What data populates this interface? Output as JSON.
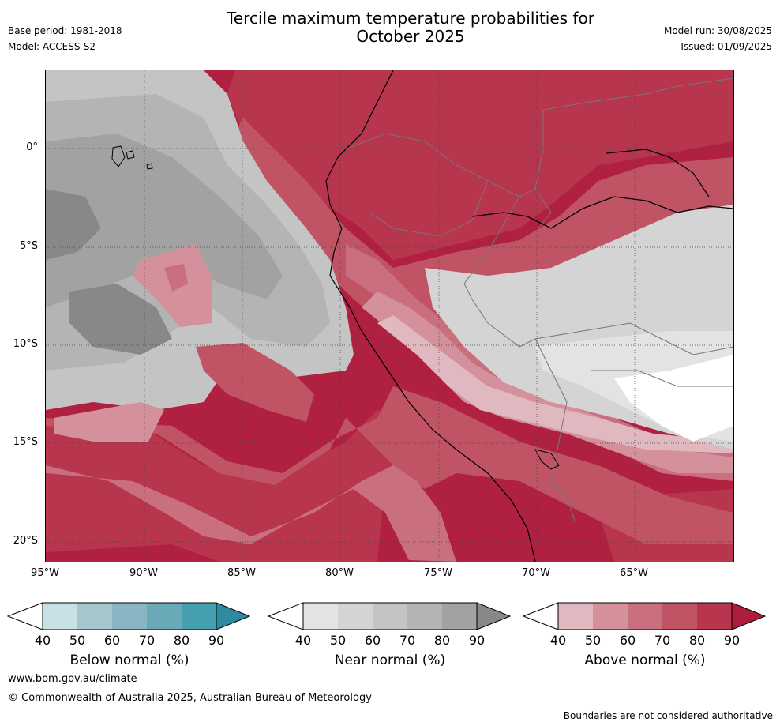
{
  "header": {
    "title_line1": "Tercile maximum temperature probabilities for",
    "title_line2": "October 2025",
    "base_period": "Base period: 1981-2018",
    "model": "Model: ACCESS-S2",
    "model_run": "Model run: 30/08/2025",
    "issued": "Issued: 01/09/2025"
  },
  "map": {
    "y_labels": [
      "0°",
      "5°S",
      "10°S",
      "15°S",
      "20°S"
    ],
    "x_labels": [
      "95°W",
      "90°W",
      "85°W",
      "80°W",
      "75°W",
      "70°W",
      "65°W"
    ],
    "lon_range": [
      -95,
      -60
    ],
    "lat_range": [
      -21,
      4
    ],
    "categories": {
      "below_normal": [
        "#c7e1e7",
        "#a5c8cf",
        "#88b6c2",
        "#6aa9b7",
        "#469fb1",
        "#2d8aa0"
      ],
      "near_normal": [
        "#e3e3e3",
        "#d4d4d4",
        "#c4c4c4",
        "#b4b4b4",
        "#a2a2a2",
        "#888888"
      ],
      "above_normal": [
        "#e0b8bf",
        "#d4919c",
        "#c96f7e",
        "#c05465",
        "#b7364d",
        "#b01c3c"
      ]
    }
  },
  "legend": {
    "below_normal": {
      "title": "Below normal (%)",
      "ticks": [
        "40",
        "50",
        "60",
        "70",
        "80",
        "90"
      ]
    },
    "near_normal": {
      "title": "Near normal (%)",
      "ticks": [
        "40",
        "50",
        "60",
        "70",
        "80",
        "90"
      ]
    },
    "above_normal": {
      "title": "Above normal (%)",
      "ticks": [
        "40",
        "50",
        "60",
        "70",
        "80",
        "90"
      ]
    }
  },
  "footer": {
    "website": "www.bom.gov.au/climate",
    "copyright": "© Commonwealth of Australia 2025, Australian Bureau of Meteorology",
    "disclaimer": "Boundaries are not considered authoritative"
  }
}
